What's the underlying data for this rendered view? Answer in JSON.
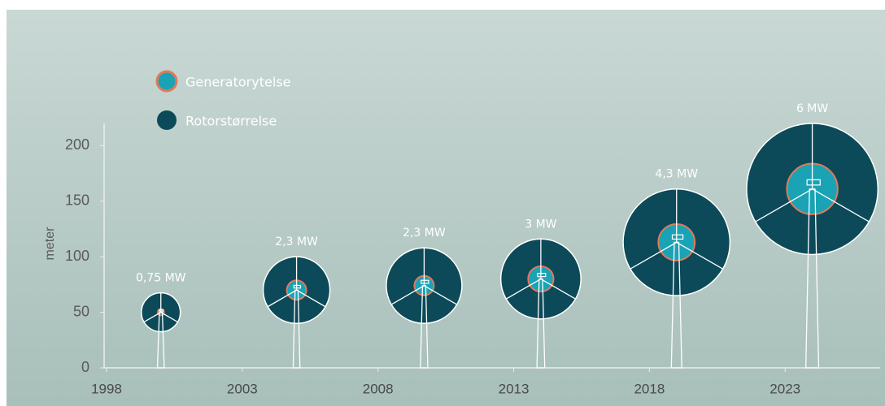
{
  "chart_data": {
    "type": "bubble",
    "ylabel": "meter",
    "x": [
      2000,
      2005,
      2009.7,
      2014,
      2019,
      2024
    ],
    "xlim": [
      1998,
      2026.5
    ],
    "xticks": [
      1998,
      2003,
      2008,
      2013,
      2018,
      2023
    ],
    "ylim": [
      0,
      220
    ],
    "yticks": [
      0,
      50,
      100,
      150,
      200
    ],
    "series": [
      {
        "name": "Rotorstørrelse",
        "color": "#0c4a59",
        "values": [
          50,
          70,
          74,
          80,
          113,
          161
        ],
        "sizes": [
          35,
          60,
          68,
          72,
          96,
          118
        ]
      },
      {
        "name": "Generatorytelse",
        "color": "#1aa3b5",
        "edge": "#e07a5a",
        "values": [
          0.75,
          2.3,
          2.3,
          3,
          4.3,
          6
        ],
        "value_labels": [
          "0,75 MW",
          "2,3 MW",
          "2,3 MW",
          "3 MW",
          "4,3 MW",
          "6 MW"
        ]
      }
    ]
  }
}
